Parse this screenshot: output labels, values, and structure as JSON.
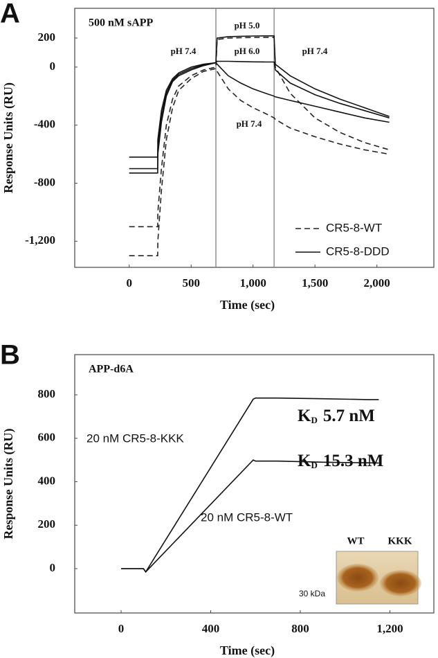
{
  "chart_data": [
    {
      "type": "line",
      "panel": "A",
      "title": "500 nM sAPP",
      "x_label": "Time (sec)",
      "y_label": "Response Units (RU)",
      "xlim": [
        -440,
        2460
      ],
      "xticks": [
        0,
        500,
        {
          "value": 1000,
          "label": "1,000"
        },
        {
          "value": 1500,
          "label": "1,500"
        },
        {
          "value": 2000,
          "label": "2,000"
        }
      ],
      "ylim": [
        -1380,
        405
      ],
      "yticks": [
        200,
        0,
        -400,
        -800,
        {
          "value": -1200,
          "label": "-1,200"
        }
      ],
      "vlines": [
        700,
        1170
      ],
      "legend": "lower right",
      "annotations": [
        "pH 5.0",
        "pH 7.4",
        "pH 6.0",
        "pH 7.4",
        "pH 7.4"
      ],
      "series": [
        {
          "name": "CR5-8-WT",
          "color": "#222222",
          "dash": true,
          "curves": [
            {
              "x": [
                0,
                230,
                231,
                260,
                300,
                350,
                400,
                500,
                600,
                700,
                710,
                800,
                900,
                1000,
                1100,
                1170,
                1180,
                1300,
                1500,
                1700,
                1900,
                2100
              ],
              "values": [
                -1100,
                -1100,
                -1000,
                -700,
                -400,
                -220,
                -130,
                -60,
                -20,
                0,
                190,
                200,
                202,
                204,
                205,
                205,
                0,
                -180,
                -350,
                -450,
                -520,
                -570
              ]
            },
            {
              "x": [
                0,
                230,
                231,
                260,
                300,
                350,
                400,
                500,
                600,
                700,
                710,
                800,
                900,
                1000,
                1100,
                1170,
                1180,
                1300,
                1500,
                1700,
                1900,
                2100
              ],
              "values": [
                -1300,
                -1300,
                -1200,
                -850,
                -500,
                -280,
                -160,
                -80,
                -30,
                -10,
                -30,
                -150,
                -230,
                -280,
                -320,
                -350,
                -360,
                -420,
                -480,
                -530,
                -570,
                -600
              ]
            }
          ]
        },
        {
          "name": "CR5-8-DDD",
          "color": "#111111",
          "dash": false,
          "curves": [
            {
              "x": [
                0,
                230,
                231,
                260,
                300,
                350,
                400,
                500,
                600,
                700,
                710,
                800,
                900,
                1000,
                1100,
                1170,
                1180,
                1300,
                1500,
                1700,
                1900,
                2100
              ],
              "values": [
                -620,
                -620,
                -500,
                -300,
                -160,
                -80,
                -40,
                0,
                20,
                30,
                200,
                210,
                212,
                214,
                215,
                215,
                20,
                -60,
                -150,
                -220,
                -280,
                -340
              ]
            },
            {
              "x": [
                0,
                230,
                231,
                260,
                300,
                350,
                400,
                500,
                600,
                700,
                710,
                800,
                900,
                1000,
                1100,
                1170,
                1180,
                1300,
                1500,
                1700,
                1900,
                2100
              ],
              "values": [
                -700,
                -700,
                -560,
                -340,
                -180,
                -90,
                -50,
                -10,
                15,
                30,
                40,
                40,
                38,
                36,
                35,
                35,
                -20,
                -110,
                -190,
                -250,
                -300,
                -350
              ]
            },
            {
              "x": [
                0,
                230,
                231,
                260,
                300,
                350,
                400,
                500,
                600,
                700,
                710,
                800,
                900,
                1000,
                1100,
                1170,
                1180,
                1300,
                1500,
                1700,
                1900,
                2100
              ],
              "values": [
                -730,
                -730,
                -600,
                -380,
                -200,
                -100,
                -60,
                -20,
                10,
                30,
                20,
                -60,
                -110,
                -150,
                -180,
                -200,
                -205,
                -230,
                -270,
                -310,
                -350,
                -380
              ]
            }
          ]
        }
      ]
    },
    {
      "type": "line",
      "panel": "B",
      "title": "APP-d6A",
      "x_label": "Time (sec)",
      "y_label": "Response Units (RU)",
      "xlim": [
        -207,
        1396
      ],
      "xticks": [
        0,
        400,
        800,
        {
          "value": 1200,
          "label": "1,200"
        }
      ],
      "ylim": [
        -204,
        985
      ],
      "yticks": [
        800,
        600,
        400,
        200,
        0
      ],
      "annotations": [
        "20 nM CR5-8-KKK",
        "20 nM CR5-8-WT"
      ],
      "kd_labels": [
        {
          "symbol": "K",
          "subscript": "D",
          "text": "5.7 nM"
        },
        {
          "symbol": "K",
          "subscript": "D",
          "text": "15.3 nM"
        }
      ],
      "inset": {
        "lanes": [
          "WT",
          "KKK"
        ],
        "marker": "30 kDa"
      },
      "series": [
        {
          "name": "20 nM CR5-8-KKK",
          "color": "#111111",
          "dash": false,
          "curves": [
            {
              "x": [
                0,
                100,
                110,
                590,
                600,
                700,
                900,
                1100,
                1150
              ],
              "values": [
                0,
                0,
                -15,
                780,
                785,
                785,
                782,
                778,
                778
              ]
            }
          ]
        },
        {
          "name": "20 nM CR5-8-WT",
          "color": "#111111",
          "dash": false,
          "curves": [
            {
              "x": [
                0,
                100,
                110,
                590,
                600,
                700,
                900,
                1100,
                1150
              ],
              "values": [
                0,
                0,
                -15,
                500,
                495,
                495,
                490,
                487,
                486
              ]
            }
          ]
        }
      ]
    }
  ]
}
